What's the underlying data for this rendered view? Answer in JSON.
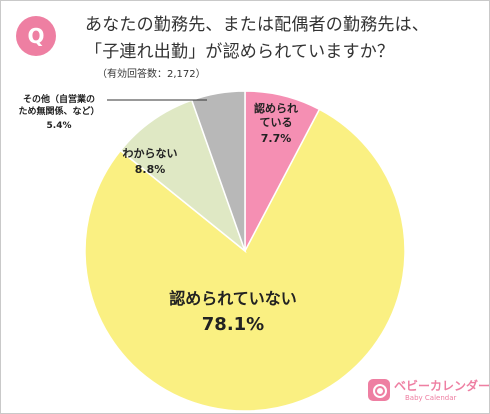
{
  "badge": "Q",
  "title_lines": [
    "あなたの勤務先、または配偶者の勤務先は、",
    "「子連れ出勤」が認められていますか？"
  ],
  "note": "（有効回答数：2,172）",
  "logo": {
    "name": "ベビーカレンダー",
    "sub": "Baby Calendar"
  },
  "colors": {
    "pink": "#f58fb3",
    "yellow": "#faf082",
    "green": "#dfe8c4",
    "gray": "#b8b8b8",
    "brand": "#ee7fa2"
  },
  "chart_data": {
    "type": "pie",
    "title": "",
    "slices": [
      {
        "label_lines": [
          "認められ",
          "ている"
        ],
        "value_label": "7.7%",
        "value": 7.7,
        "color": "#f58fb3"
      },
      {
        "label_lines": [
          "認められていない"
        ],
        "value_label": "78.1%",
        "value": 78.1,
        "color": "#faf082"
      },
      {
        "label_lines": [
          "わからない"
        ],
        "value_label": "8.8%",
        "value": 8.8,
        "color": "#dfe8c4"
      },
      {
        "label_lines": [
          "その他（自営業の",
          "ため無関係、など）"
        ],
        "value_label": "5.4%",
        "value": 5.4,
        "color": "#b8b8b8"
      }
    ],
    "start": "12 o'clock",
    "direction": "clockwise"
  }
}
